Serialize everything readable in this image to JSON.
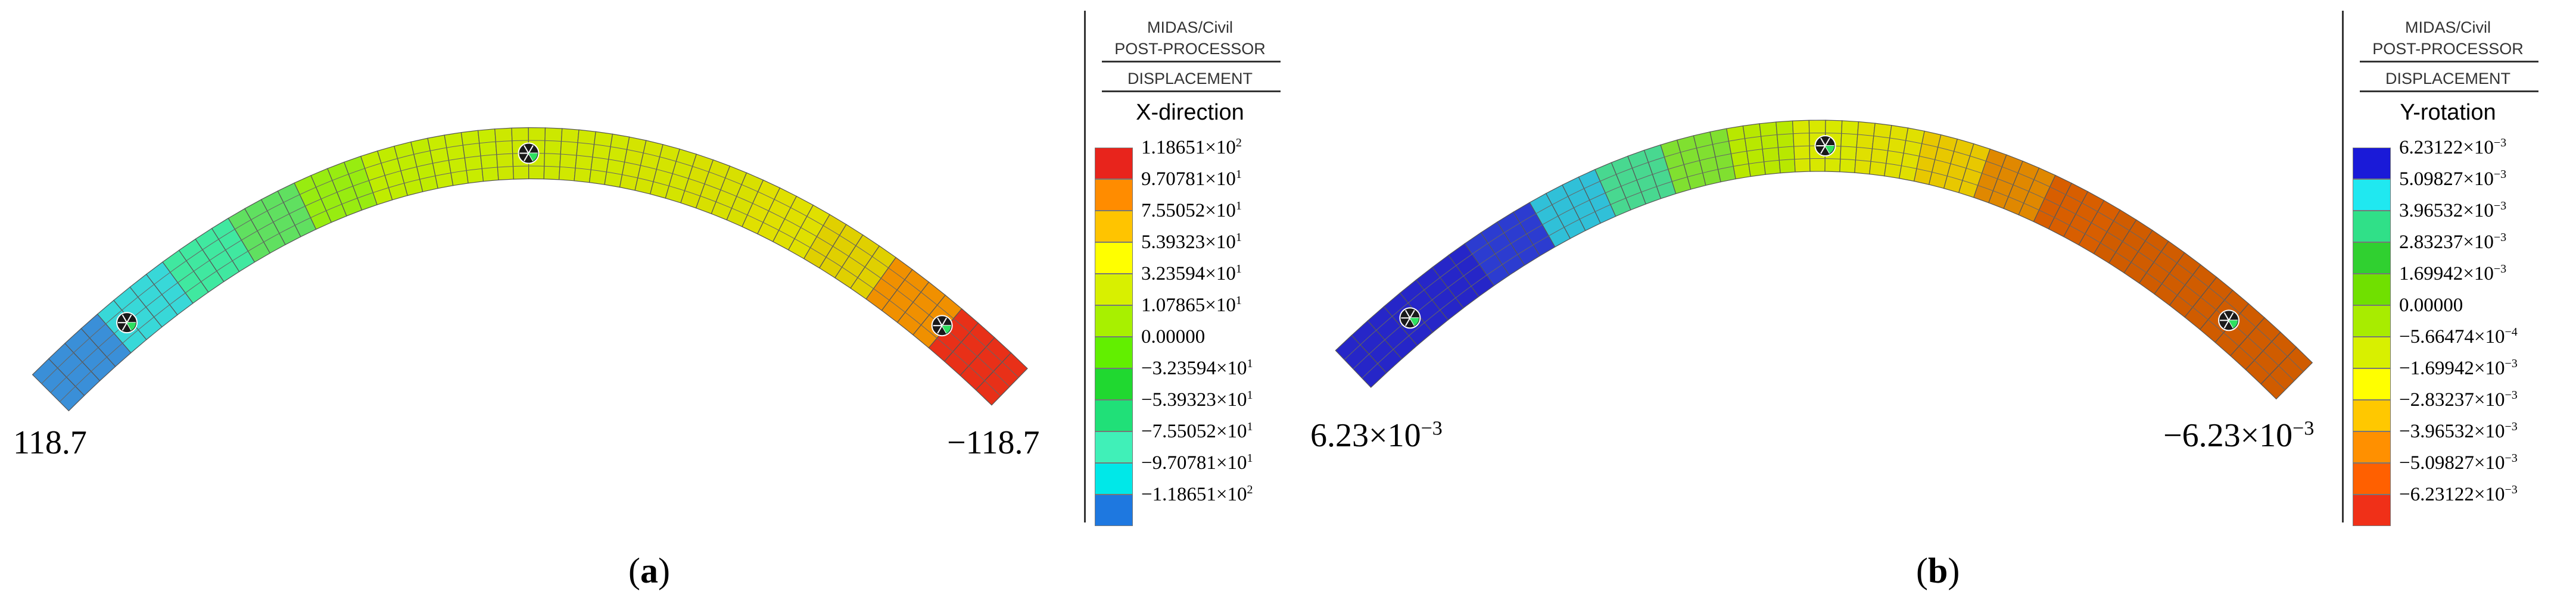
{
  "panels": [
    {
      "id": "a",
      "caption": "a",
      "left_label": {
        "mantissa": "118.7",
        "exp": ""
      },
      "right_label": {
        "mantissa": "−118.7",
        "exp": ""
      },
      "legend": {
        "program": "MIDAS/Civil",
        "module": "POST-PROCESSOR",
        "result": "DISPLACEMENT",
        "component": "X-direction",
        "ticks": [
          {
            "m": "1.18651×10",
            "e": "2"
          },
          {
            "m": "9.70781×10",
            "e": "1"
          },
          {
            "m": "7.55052×10",
            "e": "1"
          },
          {
            "m": "5.39323×10",
            "e": "1"
          },
          {
            "m": "3.23594×10",
            "e": "1"
          },
          {
            "m": "1.07865×10",
            "e": "1"
          },
          {
            "m": "0.00000",
            "e": ""
          },
          {
            "m": "−3.23594×10",
            "e": "1"
          },
          {
            "m": "−5.39323×10",
            "e": "1"
          },
          {
            "m": "−7.55052×10",
            "e": "1"
          },
          {
            "m": "−9.70781×10",
            "e": "1"
          },
          {
            "m": "−1.18651×10",
            "e": "2"
          }
        ],
        "colors": [
          "#e8241c",
          "#ff8c00",
          "#ffc400",
          "#ffff00",
          "#d8f000",
          "#a8f000",
          "#62ef00",
          "#20d830",
          "#20e078",
          "#40f0b8",
          "#00e8e8",
          "#1e78e0"
        ]
      },
      "arch_colors": [
        "#3a8fd8",
        "#38d8d8",
        "#40e8a0",
        "#60e060",
        "#98ec10",
        "#c0ec00",
        "#c8ec00",
        "#cce800",
        "#d0e800",
        "#d4e400",
        "#d8e000",
        "#e0e000",
        "#e0d000",
        "#f09000",
        "#e83018"
      ]
    },
    {
      "id": "b",
      "caption": "b",
      "left_label": {
        "mantissa": "6.23×10",
        "exp": "−3"
      },
      "right_label": {
        "mantissa": "−6.23×10",
        "exp": "−3"
      },
      "legend": {
        "program": "MIDAS/Civil",
        "module": "POST-PROCESSOR",
        "result": "DISPLACEMENT",
        "component": "Y-rotation",
        "ticks": [
          {
            "m": "6.23122×10",
            "e": "−3"
          },
          {
            "m": "5.09827×10",
            "e": "−3"
          },
          {
            "m": "3.96532×10",
            "e": "−3"
          },
          {
            "m": "2.83237×10",
            "e": "−3"
          },
          {
            "m": "1.69942×10",
            "e": "−3"
          },
          {
            "m": "0.00000",
            "e": ""
          },
          {
            "m": "−5.66474×10",
            "e": "−4"
          },
          {
            "m": "−1.69942×10",
            "e": "−3"
          },
          {
            "m": "−2.83237×10",
            "e": "−3"
          },
          {
            "m": "−3.96532×10",
            "e": "−3"
          },
          {
            "m": "−5.09827×10",
            "e": "−3"
          },
          {
            "m": "−6.23122×10",
            "e": "−3"
          }
        ],
        "colors": [
          "#1a1ad8",
          "#20e8f0",
          "#30e088",
          "#30d030",
          "#70e000",
          "#a8ec00",
          "#d8f000",
          "#ffff00",
          "#ffc800",
          "#ff9000",
          "#ff6000",
          "#f03018"
        ]
      },
      "arch_colors": [
        "#2626c8",
        "#2626c8",
        "#2c3cd0",
        "#30c0d8",
        "#48d890",
        "#80e030",
        "#b8e800",
        "#d8e800",
        "#e0e000",
        "#e8c800",
        "#e08800",
        "#d85e00",
        "#d05c00",
        "#d05c00",
        "#d05c00"
      ]
    }
  ]
}
